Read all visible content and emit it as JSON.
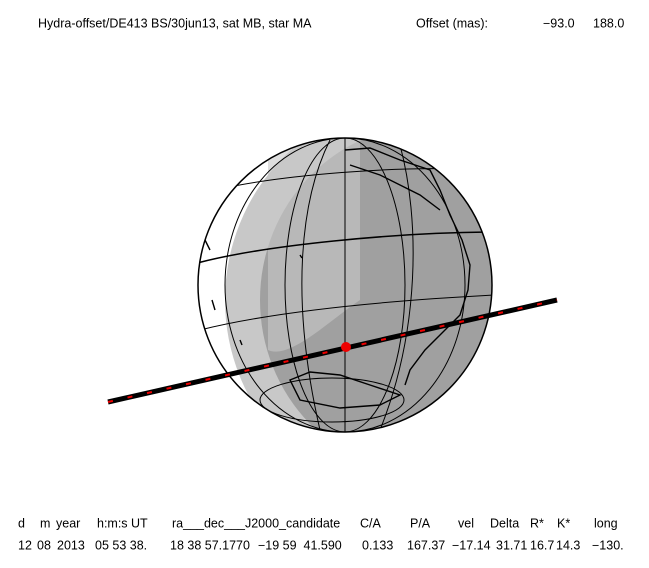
{
  "header": {
    "title": "Hydra-offset/DE413 BS/30jun13, sat MB, star MA",
    "offset_label": "Offset (mas):",
    "offset_values": [
      "−93.0",
      "188.0"
    ]
  },
  "table": {
    "columns": [
      "d",
      "m",
      "year",
      "h:m:s UT",
      "ra___dec___J2000_candidate",
      "C/A",
      "P/A",
      "vel",
      "Delta",
      "R*",
      "K*",
      "long"
    ],
    "rows": [
      [
        "12",
        "08",
        "2013",
        "05 53 38.",
        "18 38 57.1770",
        "−19 59  41.590",
        "0.133",
        "167.37",
        "−17.14",
        "31.71",
        "16.7",
        "14.3",
        "−130."
      ]
    ]
  }
}
